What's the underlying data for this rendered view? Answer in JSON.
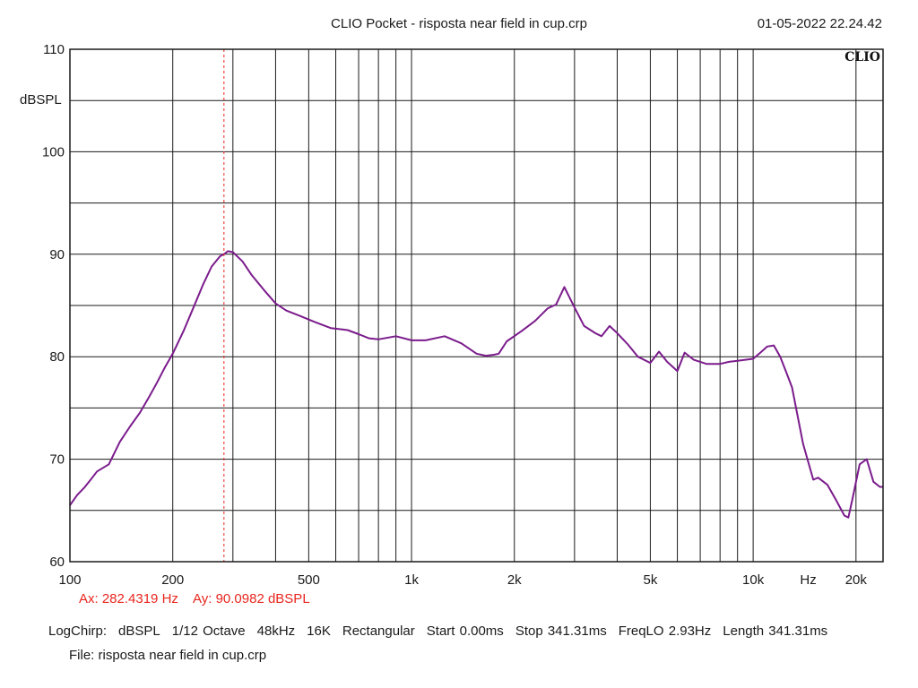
{
  "header": {
    "title": "CLIO Pocket - risposta near field in cup.crp",
    "timestamp": "01-05-2022 22.24.42",
    "logo_text": "CLIO"
  },
  "cursor": {
    "ax_text": "Ax: 282.4319 Hz",
    "ay_text": "Ay: 90.0982 dBSPL",
    "x": 282.4319,
    "color": "#e8261e"
  },
  "footer": {
    "settings": [
      "LogChirp:",
      "dBSPL",
      "1/12 Octave",
      "48kHz",
      "16K",
      "Rectangular",
      "Start 0.00ms",
      "Stop 341.31ms",
      "FreqLO 2.93Hz",
      "Length 341.31ms"
    ],
    "file": "File: risposta near field in cup.crp"
  },
  "chart_data": {
    "type": "line",
    "title": "CLIO Pocket - risposta near field in cup.crp",
    "xlabel": "Hz",
    "ylabel": "dBSPL",
    "x_scale": "log",
    "xlim": [
      100,
      24000
    ],
    "ylim": [
      60,
      110
    ],
    "grid": true,
    "x_tick_values": [
      100,
      200,
      500,
      1000,
      2000,
      5000,
      10000,
      20000
    ],
    "x_tick_labels": [
      "100",
      "200",
      "500",
      "1k",
      "2k",
      "5k",
      "10k",
      "20k"
    ],
    "x_unit_label": "Hz",
    "x_unit_position": 14500,
    "y_tick_values": [
      60,
      70,
      80,
      90,
      100,
      110
    ],
    "y_tick_labels": [
      "60",
      "70",
      "80",
      "90",
      "100",
      "110"
    ],
    "y_label_position": 105,
    "line_color": "#7b1c8c",
    "series": [
      {
        "x": [
          100,
          105,
          110,
          115,
          120,
          130,
          140,
          150,
          160,
          170,
          180,
          190,
          200,
          215,
          230,
          245,
          260,
          275,
          285,
          290,
          300,
          320,
          340,
          370,
          400,
          430,
          470,
          520,
          580,
          650,
          700,
          750,
          800,
          900,
          1000,
          1100,
          1250,
          1400,
          1550,
          1650,
          1750,
          1800,
          1900,
          2100,
          2300,
          2500,
          2650,
          2800,
          3000,
          3200,
          3450,
          3600,
          3800,
          4000,
          4300,
          4600,
          5000,
          5300,
          5600,
          6000,
          6300,
          6700,
          7300,
          8000,
          8500,
          9000,
          10000,
          10500,
          11000,
          11500,
          12000,
          12500,
          13000,
          14000,
          15000,
          15500,
          16500,
          17500,
          18500,
          19000,
          19500,
          20500,
          21500,
          22500,
          23500,
          24000
        ],
        "y": [
          65.5,
          66.5,
          67.2,
          68.0,
          68.8,
          69.5,
          71.7,
          73.2,
          74.5,
          76.0,
          77.5,
          79.0,
          80.3,
          82.5,
          84.8,
          87.0,
          88.8,
          89.8,
          90.1,
          90.3,
          90.2,
          89.3,
          88.0,
          86.5,
          85.2,
          84.5,
          84.0,
          83.4,
          82.8,
          82.6,
          82.2,
          81.8,
          81.7,
          82.0,
          81.6,
          81.6,
          82.0,
          81.3,
          80.3,
          80.1,
          80.2,
          80.3,
          81.5,
          82.5,
          83.5,
          84.7,
          85.1,
          86.8,
          84.8,
          83.0,
          82.3,
          82.0,
          83.0,
          82.3,
          81.2,
          80.0,
          79.4,
          80.5,
          79.5,
          78.6,
          80.4,
          79.7,
          79.3,
          79.3,
          79.5,
          79.6,
          79.8,
          80.4,
          81.0,
          81.1,
          80.0,
          78.5,
          77.0,
          71.5,
          68.0,
          68.2,
          67.5,
          66.0,
          64.5,
          64.3,
          66.0,
          69.5,
          70.0,
          67.8,
          67.3,
          67.3
        ]
      }
    ]
  }
}
